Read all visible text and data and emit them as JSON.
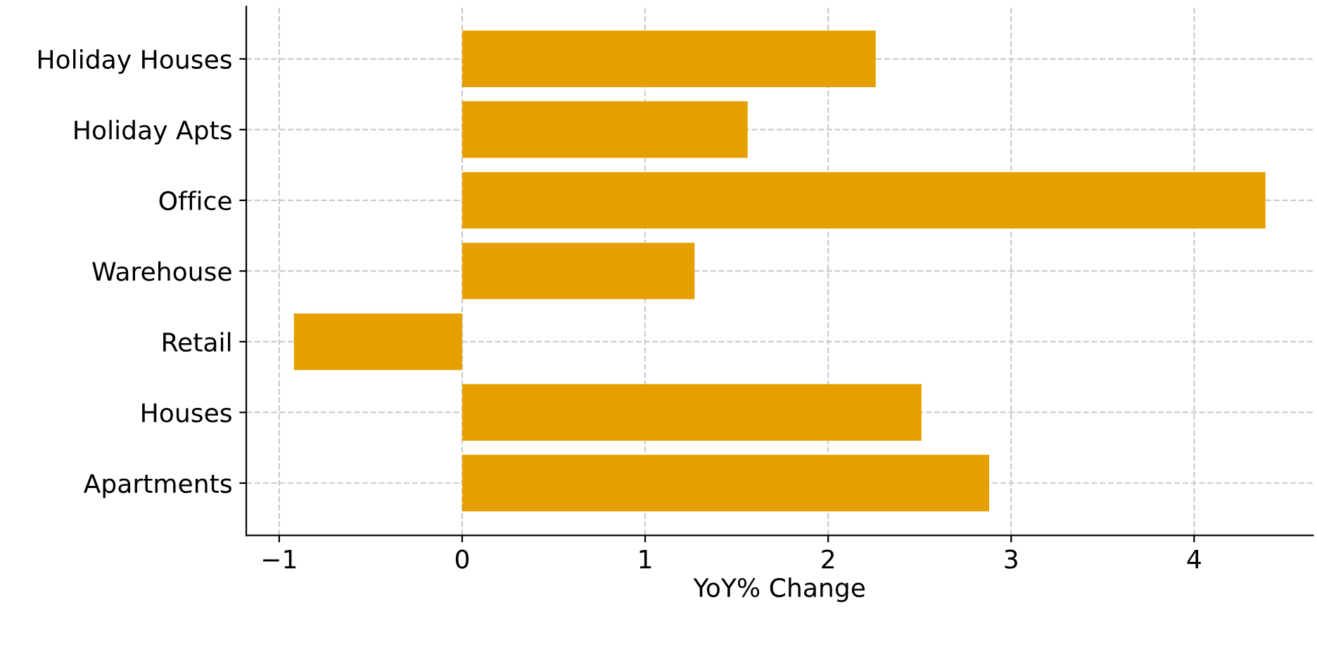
{
  "chart_data": {
    "type": "bar",
    "orientation": "horizontal",
    "xlabel": "YoY% Change",
    "categories": [
      "Holiday Houses",
      "Holiday Apts",
      "Office",
      "Warehouse",
      "Retail",
      "Houses",
      "Apartments"
    ],
    "values": [
      2.26,
      1.56,
      4.39,
      1.27,
      -0.92,
      2.51,
      2.88
    ],
    "color": "#e5a000",
    "xlim": [
      -1.18,
      4.65
    ],
    "xticks": [
      -1,
      0,
      1,
      2,
      3,
      4
    ],
    "grid": true
  }
}
